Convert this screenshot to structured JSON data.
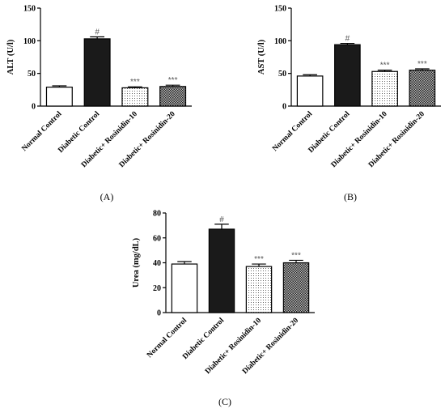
{
  "chart_data": [
    {
      "type": "bar",
      "panel_label": "(A)",
      "ylabel": "ALT (U/l)",
      "ylim": [
        0,
        150
      ],
      "yticks": [
        0,
        50,
        100,
        150
      ],
      "categories": [
        "Normal Control",
        "Diabetic Control",
        "Diabetic+ Rosinidin-10",
        "Diabetic+ Rosinidin-20"
      ],
      "values": [
        29,
        103,
        28,
        30
      ],
      "errors": [
        2,
        3,
        1.5,
        2
      ],
      "annotations": [
        "",
        "#",
        "***",
        "***"
      ],
      "fills": [
        "white",
        "black",
        "dots",
        "crosshatch"
      ]
    },
    {
      "type": "bar",
      "panel_label": "(B)",
      "ylabel": "AST (U/l)",
      "ylim": [
        0,
        150
      ],
      "yticks": [
        0,
        50,
        100,
        150
      ],
      "categories": [
        "Normal Control",
        "Diabetic Control",
        "Diabetic+ Rosinidin-10",
        "Diabetic+ Rosinidin-20"
      ],
      "values": [
        46,
        94,
        53,
        55
      ],
      "errors": [
        2,
        2,
        2,
        2
      ],
      "annotations": [
        "",
        "#",
        "***",
        "***"
      ],
      "fills": [
        "white",
        "black",
        "dots",
        "crosshatch"
      ]
    },
    {
      "type": "bar",
      "panel_label": "(C)",
      "ylabel": "Urea (mg/dL)",
      "ylim": [
        0,
        80
      ],
      "yticks": [
        0,
        20,
        40,
        60,
        80
      ],
      "categories": [
        "Normal Control",
        "Diabetic Control",
        "Diabetic+ Rosinidin-10",
        "Diabetic+ Rosinidin-20"
      ],
      "values": [
        39,
        67,
        37,
        40
      ],
      "errors": [
        2,
        4,
        2,
        2
      ],
      "annotations": [
        "",
        "#",
        "***",
        "***"
      ],
      "fills": [
        "white",
        "black",
        "dots",
        "crosshatch"
      ]
    }
  ]
}
